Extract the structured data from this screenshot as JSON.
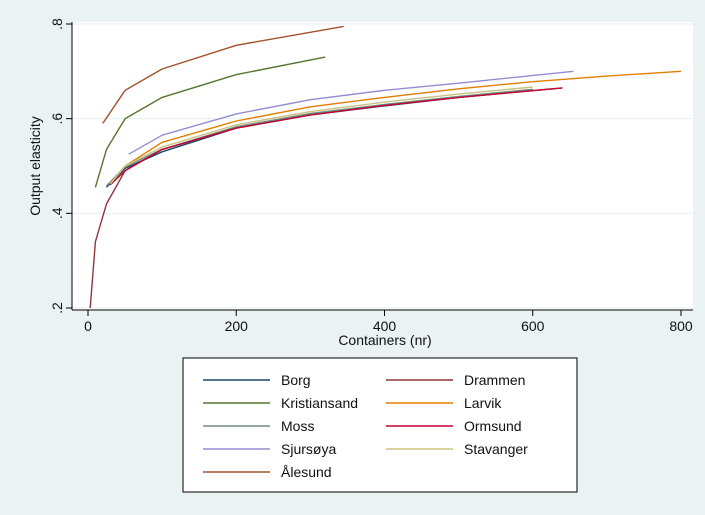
{
  "chart_data": {
    "type": "line",
    "xlabel": "Containers (nr)",
    "ylabel": "Output elasticity",
    "xlim": [
      0,
      800
    ],
    "ylim": [
      0.2,
      0.8
    ],
    "x_ticks": [
      0,
      200,
      400,
      600,
      800
    ],
    "x_tick_labels": [
      "0",
      "200",
      "400",
      "600",
      "800"
    ],
    "y_ticks": [
      0.2,
      0.4,
      0.6,
      0.8
    ],
    "y_tick_labels": [
      ".2",
      ".4",
      ".6",
      ".8"
    ],
    "grid": "horizontal",
    "legend_position": "bottom",
    "series": [
      {
        "name": "Borg",
        "color": "#1a476f",
        "x": [
          25,
          50,
          100,
          200,
          300,
          400,
          500,
          600
        ],
        "y": [
          0.455,
          0.495,
          0.53,
          0.58,
          0.608,
          0.627,
          0.645,
          0.66
        ]
      },
      {
        "name": "Drammen",
        "color": "#90353b",
        "x": [
          3,
          10,
          25,
          50,
          100,
          200,
          300,
          400,
          500,
          640
        ],
        "y": [
          0.2,
          0.34,
          0.42,
          0.49,
          0.535,
          0.58,
          0.608,
          0.628,
          0.645,
          0.665
        ]
      },
      {
        "name": "Kristiansand",
        "color": "#55752f",
        "x": [
          10,
          25,
          50,
          100,
          200,
          320
        ],
        "y": [
          0.455,
          0.535,
          0.6,
          0.645,
          0.693,
          0.73
        ]
      },
      {
        "name": "Larvik",
        "color": "#e37e00",
        "x": [
          30,
          50,
          100,
          200,
          300,
          400,
          500,
          600,
          700,
          800
        ],
        "y": [
          0.465,
          0.5,
          0.55,
          0.595,
          0.625,
          0.645,
          0.663,
          0.678,
          0.69,
          0.7
        ]
      },
      {
        "name": "Moss",
        "color": "#6e8e84",
        "x": [
          25,
          50,
          100,
          200,
          300,
          400,
          500,
          600
        ],
        "y": [
          0.458,
          0.498,
          0.535,
          0.583,
          0.611,
          0.63,
          0.647,
          0.662
        ]
      },
      {
        "name": "Ormsund",
        "color": "#c10534",
        "x": [
          30,
          50,
          100,
          200,
          300,
          400,
          500,
          640
        ],
        "y": [
          0.46,
          0.49,
          0.535,
          0.58,
          0.608,
          0.628,
          0.645,
          0.665
        ]
      },
      {
        "name": "Sjursøya",
        "color": "#938dd2",
        "x": [
          55,
          100,
          200,
          300,
          400,
          500,
          655
        ],
        "y": [
          0.525,
          0.565,
          0.61,
          0.64,
          0.66,
          0.675,
          0.7
        ]
      },
      {
        "name": "Stavanger",
        "color": "#cac27e",
        "x": [
          30,
          50,
          100,
          200,
          300,
          400,
          500,
          600
        ],
        "y": [
          0.462,
          0.5,
          0.54,
          0.587,
          0.615,
          0.635,
          0.652,
          0.667
        ]
      },
      {
        "name": "Ålesund",
        "color": "#a0522d",
        "x": [
          20,
          50,
          100,
          200,
          345
        ],
        "y": [
          0.59,
          0.66,
          0.705,
          0.755,
          0.795
        ]
      }
    ]
  }
}
